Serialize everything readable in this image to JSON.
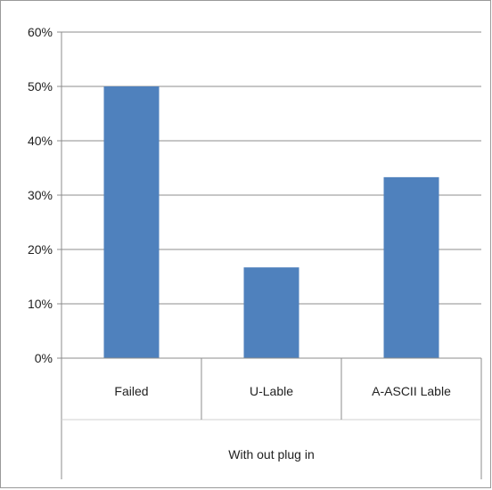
{
  "chart_data": {
    "type": "bar",
    "title": "",
    "xlabel": "",
    "ylabel": "",
    "group_label": "With out plug in",
    "categories": [
      "Failed",
      "U-Lable",
      "A-ASCII Lable"
    ],
    "values": [
      50,
      16.7,
      33.3
    ],
    "unit": "%",
    "ylim": [
      0,
      60
    ],
    "yticks": [
      0,
      10,
      20,
      30,
      40,
      50,
      60
    ],
    "ytick_labels": [
      "0%",
      "10%",
      "20%",
      "30%",
      "40%",
      "50%",
      "60%"
    ],
    "grid": true,
    "legend": "none",
    "bar_color": "#4f81bd",
    "grid_color": "#8c8c8c"
  }
}
